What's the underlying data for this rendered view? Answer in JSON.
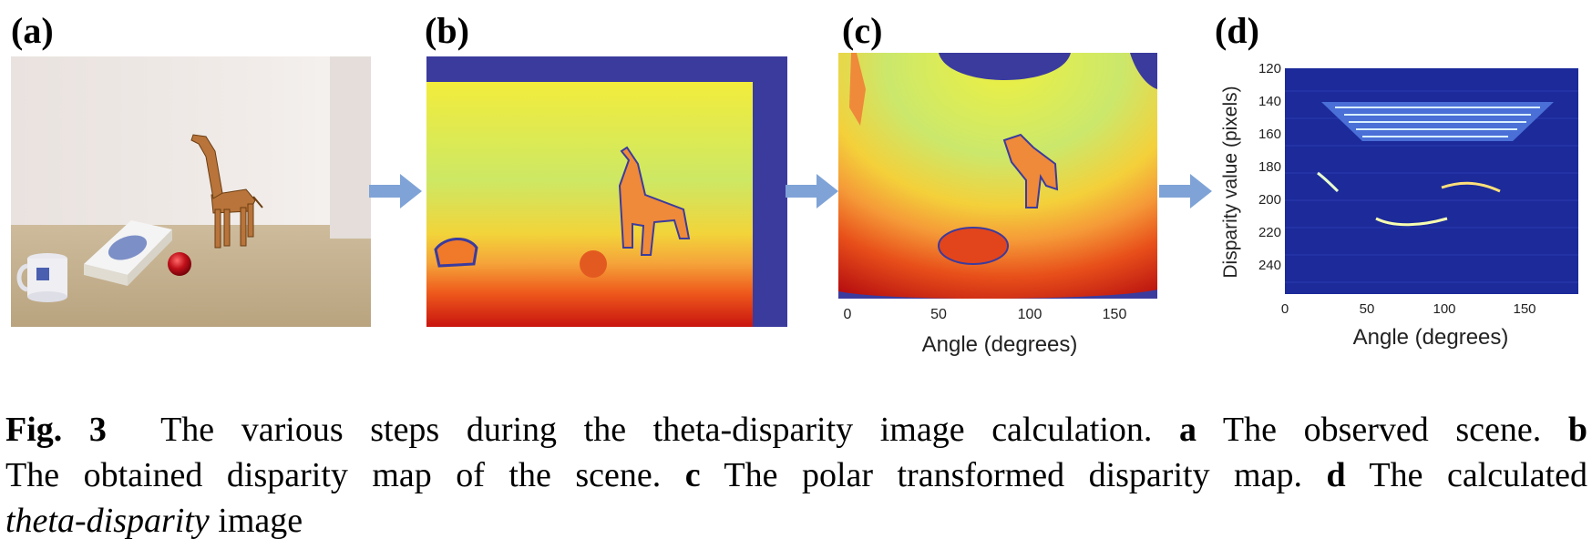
{
  "panels": {
    "a": {
      "label": "(a)"
    },
    "b": {
      "label": "(b)"
    },
    "c": {
      "label": "(c)",
      "x_ticks": [
        "0",
        "50",
        "100",
        "150"
      ],
      "x_label": "Angle (degrees)"
    },
    "d": {
      "label": "(d)",
      "x_ticks": [
        "0",
        "50",
        "100",
        "150"
      ],
      "x_label": "Angle (degrees)",
      "y_ticks": [
        "120",
        "140",
        "160",
        "180",
        "200",
        "220",
        "240"
      ],
      "y_label": "Disparity value (pixels)"
    }
  },
  "caption": {
    "fig_label": "Fig. 3",
    "text1": "The various steps during the theta-disparity image calculation.",
    "a_key": "a",
    "a_text": "The observed scene.",
    "b_key": "b",
    "b_text": "The obtained disparity map of the scene.",
    "c_key": "c",
    "c_text": "The polar transformed disparity map.",
    "d_key": "d",
    "d_text": "The calculated",
    "italic_term": "theta-disparity",
    "end_text": "image"
  },
  "colors": {
    "arrow": "#7fa3d6",
    "background_blue": "#3b3b9e"
  }
}
